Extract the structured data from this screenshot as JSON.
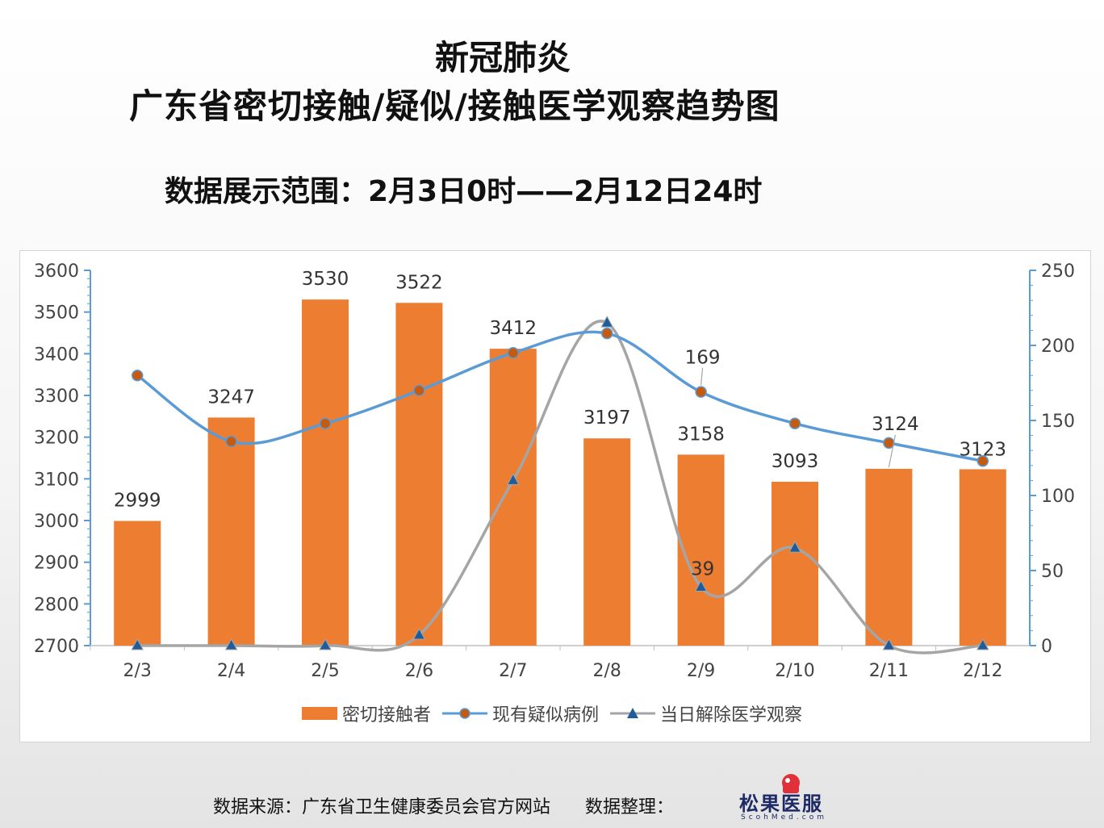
{
  "title": {
    "line1": "新冠肺炎",
    "line2": "广东省密切接触/疑似/接触医学观察趋势图",
    "subtitle": "数据展示范围：2月3日0时——2月12日24时"
  },
  "footer": {
    "source": "数据来源：广东省卫生健康委员会官方网站",
    "organizer": "数据整理：",
    "logo_text": "松果医服",
    "logo_sub": "ScohMed.com"
  },
  "colors": {
    "bar": "#ed7d31",
    "line1": "#5b9bd5",
    "line2": "#a5a5a5",
    "marker1": "#c55a11",
    "marker2": "#1f5c99"
  },
  "chart_data": {
    "type": "bar",
    "categories": [
      "2/3",
      "2/4",
      "2/5",
      "2/6",
      "2/7",
      "2/8",
      "2/9",
      "2/10",
      "2/11",
      "2/12"
    ],
    "series": [
      {
        "name": "密切接触者",
        "type": "bar",
        "axis": "left",
        "values": [
          2999,
          3247,
          3530,
          3522,
          3412,
          3197,
          3158,
          3093,
          3124,
          3123
        ]
      },
      {
        "name": "现有疑似病例",
        "type": "line",
        "axis": "right",
        "values": [
          180,
          136,
          148,
          170,
          195,
          208,
          169,
          148,
          135,
          123
        ]
      },
      {
        "name": "当日解除医学观察",
        "type": "line",
        "axis": "right",
        "values": [
          0,
          0,
          0,
          7,
          110,
          215,
          39,
          65,
          0,
          0
        ]
      }
    ],
    "left_axis": {
      "min": 2700,
      "max": 3600,
      "ticks": [
        2700,
        2800,
        2900,
        3000,
        3100,
        3200,
        3300,
        3400,
        3500,
        3600
      ]
    },
    "right_axis": {
      "min": 0,
      "max": 250,
      "ticks": [
        0,
        50,
        100,
        150,
        200,
        250
      ]
    },
    "data_labels": {
      "bars": [
        "2999",
        "3247",
        "3530",
        "3522",
        "3412",
        "3197",
        "3158",
        "3093",
        "3124",
        "3123"
      ],
      "suspect_at_2_9": "169",
      "release_at_2_9": "39"
    },
    "legend_position": "bottom"
  }
}
